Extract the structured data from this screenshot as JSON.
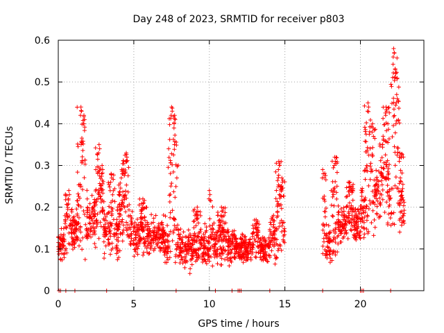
{
  "chart_data": {
    "type": "scatter",
    "title": "Day 248 of 2023, SRMTID for receiver p803",
    "xlabel": "GPS time / hours",
    "ylabel": "SRMTID / TECUs",
    "xlim": [
      0,
      24.2
    ],
    "ylim": [
      0,
      0.6
    ],
    "x_ticks": [
      0,
      5,
      10,
      15,
      20
    ],
    "y_ticks": [
      0,
      0.1,
      0.2,
      0.3,
      0.4,
      0.5,
      0.6
    ],
    "x_tick_labels": [
      "0",
      "5",
      "10",
      "15",
      "20"
    ],
    "y_tick_labels": [
      "0",
      "0.1",
      "0.2",
      "0.3",
      "0.4",
      "0.5",
      "0.6"
    ],
    "grid": true,
    "marker": "plus",
    "color": "#ff0000",
    "series": [
      {
        "name": "SRMTID",
        "segments": [
          {
            "x_range": [
              0.0,
              0.4
            ],
            "level": 0.11,
            "spread": 0.03,
            "peaks": []
          },
          {
            "x_range": [
              0.4,
              1.2
            ],
            "level": 0.14,
            "spread": 0.05,
            "peaks": [
              {
                "x": 0.7,
                "y": 0.24
              }
            ]
          },
          {
            "x_range": [
              1.2,
              1.8
            ],
            "level": 0.16,
            "spread": 0.07,
            "peaks": [
              {
                "x": 1.5,
                "y": 0.44
              },
              {
                "x": 1.7,
                "y": 0.42
              }
            ]
          },
          {
            "x_range": [
              1.8,
              3.0
            ],
            "level": 0.17,
            "spread": 0.06,
            "peaks": [
              {
                "x": 2.7,
                "y": 0.35
              },
              {
                "x": 2.9,
                "y": 0.3
              }
            ]
          },
          {
            "x_range": [
              3.0,
              4.0
            ],
            "level": 0.14,
            "spread": 0.05,
            "peaks": [
              {
                "x": 3.5,
                "y": 0.28
              }
            ]
          },
          {
            "x_range": [
              4.0,
              5.0
            ],
            "level": 0.16,
            "spread": 0.06,
            "peaks": [
              {
                "x": 4.5,
                "y": 0.33
              },
              {
                "x": 4.2,
                "y": 0.29
              }
            ]
          },
          {
            "x_range": [
              5.0,
              7.0
            ],
            "level": 0.13,
            "spread": 0.04,
            "peaks": [
              {
                "x": 5.6,
                "y": 0.22
              }
            ]
          },
          {
            "x_range": [
              7.0,
              8.0
            ],
            "level": 0.12,
            "spread": 0.05,
            "peaks": [
              {
                "x": 7.5,
                "y": 0.44
              },
              {
                "x": 7.7,
                "y": 0.42
              }
            ]
          },
          {
            "x_range": [
              8.0,
              10.0
            ],
            "level": 0.1,
            "spread": 0.04,
            "peaks": [
              {
                "x": 9.2,
                "y": 0.2
              }
            ]
          },
          {
            "x_range": [
              10.0,
              11.7
            ],
            "level": 0.11,
            "spread": 0.04,
            "peaks": [
              {
                "x": 10.0,
                "y": 0.24
              },
              {
                "x": 10.8,
                "y": 0.2
              }
            ]
          },
          {
            "x_range": [
              11.7,
              14.0
            ],
            "level": 0.1,
            "spread": 0.03,
            "peaks": [
              {
                "x": 13.1,
                "y": 0.17
              }
            ]
          },
          {
            "x_range": [
              14.0,
              15.0
            ],
            "level": 0.13,
            "spread": 0.05,
            "peaks": [
              {
                "x": 14.6,
                "y": 0.31
              },
              {
                "x": 14.8,
                "y": 0.27
              }
            ]
          },
          {
            "x_range": [
              17.5,
              18.5
            ],
            "level": 0.11,
            "spread": 0.04,
            "peaks": [
              {
                "x": 17.5,
                "y": 0.29
              },
              {
                "x": 18.3,
                "y": 0.32
              }
            ]
          },
          {
            "x_range": [
              18.5,
              20.0
            ],
            "level": 0.16,
            "spread": 0.04,
            "peaks": [
              {
                "x": 19.3,
                "y": 0.26
              }
            ]
          },
          {
            "x_range": [
              20.0,
              21.0
            ],
            "level": 0.19,
            "spread": 0.06,
            "peaks": [
              {
                "x": 20.5,
                "y": 0.45
              },
              {
                "x": 20.8,
                "y": 0.4
              }
            ]
          },
          {
            "x_range": [
              21.0,
              22.0
            ],
            "level": 0.23,
            "spread": 0.06,
            "peaks": [
              {
                "x": 21.7,
                "y": 0.44
              },
              {
                "x": 21.5,
                "y": 0.37
              }
            ]
          },
          {
            "x_range": [
              22.0,
              22.9
            ],
            "level": 0.19,
            "spread": 0.05,
            "peaks": [
              {
                "x": 22.2,
                "y": 0.58
              },
              {
                "x": 22.3,
                "y": 0.53
              },
              {
                "x": 22.4,
                "y": 0.47
              },
              {
                "x": 22.6,
                "y": 0.33
              }
            ]
          }
        ],
        "zero_markers": [
          0.05,
          0.15,
          0.5,
          1.1,
          3.2,
          7.8,
          10.4,
          11.5,
          11.9,
          12.0,
          12.1,
          14.0,
          17.5,
          20.0,
          20.1,
          20.2,
          22.0
        ]
      }
    ]
  }
}
